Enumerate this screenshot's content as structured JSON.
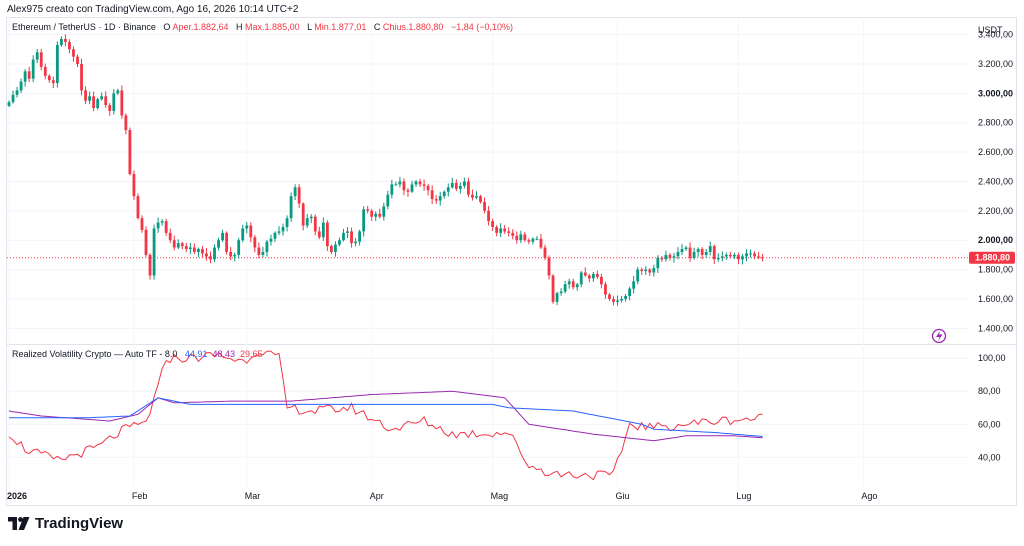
{
  "header": {
    "caption": "Alex975 creato con TradingView.com, Ago 16, 2026 10:14 UTC+2",
    "symbol": "Ethereum / TetherUS · 1D · Binance",
    "open_label": "O",
    "open_value": "Aper.1.882,64",
    "high_label": "H",
    "high_value": "Max.1.885,00",
    "low_label": "L",
    "low_value": "Min.1.877,01",
    "close_label": "C",
    "close_value": "Chius.1.880,80",
    "change_value": "−1,84 (−0,10%)"
  },
  "price_axis": {
    "currency": "USDT",
    "ticks": [
      {
        "label": "3.400,00",
        "value": 3400,
        "bold": false
      },
      {
        "label": "3.200,00",
        "value": 3200,
        "bold": false
      },
      {
        "label": "3.000,00",
        "value": 3000,
        "bold": true
      },
      {
        "label": "2.800,00",
        "value": 2800,
        "bold": false
      },
      {
        "label": "2.600,00",
        "value": 2600,
        "bold": false
      },
      {
        "label": "2.400,00",
        "value": 2400,
        "bold": false
      },
      {
        "label": "2.200,00",
        "value": 2200,
        "bold": false
      },
      {
        "label": "2.000,00",
        "value": 2000,
        "bold": true
      },
      {
        "label": "1.800,00",
        "value": 1800,
        "bold": false
      },
      {
        "label": "1.600,00",
        "value": 1600,
        "bold": false
      },
      {
        "label": "1.400,00",
        "value": 1400,
        "bold": false
      }
    ],
    "last_price_label": "1.880,80",
    "last_price": 1880.8
  },
  "oscillator": {
    "title": "Realized Volatility Crypto — Auto TF - 8.0",
    "values": [
      "44,91",
      "48,43",
      "29,65"
    ],
    "value_colors": [
      "#2962ff",
      "#9c27b0",
      "#f23645"
    ],
    "ticks": [
      {
        "label": "100,00",
        "value": 100
      },
      {
        "label": "80,00",
        "value": 80
      },
      {
        "label": "60,00",
        "value": 60
      },
      {
        "label": "40,00",
        "value": 40
      }
    ]
  },
  "time_axis": [
    {
      "label": "2026",
      "bold": true,
      "idx": 0
    },
    {
      "label": "Feb",
      "bold": false,
      "idx": 31
    },
    {
      "label": "Mar",
      "bold": false,
      "idx": 59
    },
    {
      "label": "Apr",
      "bold": false,
      "idx": 90
    },
    {
      "label": "Mag",
      "bold": false,
      "idx": 120
    },
    {
      "label": "Giu",
      "bold": false,
      "idx": 151
    },
    {
      "label": "Lug",
      "bold": false,
      "idx": 181
    },
    {
      "label": "Ago",
      "bold": false,
      "idx": 212
    }
  ],
  "colors": {
    "up": "#089981",
    "down": "#f23645",
    "blue": "#2962ff",
    "purple": "#9c27b0",
    "red": "#f23645"
  },
  "brand": {
    "name": "TradingView"
  },
  "chart_data": [
    {
      "type": "candlestick",
      "title": "Ethereum / TetherUS · 1D · Binance",
      "ylabel": "USDT",
      "ylim": [
        1300,
        3520
      ],
      "x": "daily, Jan 1 2026 to Aug 16 2026",
      "close_series": [
        2940,
        2990,
        3020,
        3080,
        3150,
        3100,
        3230,
        3280,
        3180,
        3120,
        3090,
        3070,
        3330,
        3370,
        3350,
        3300,
        3250,
        3200,
        3020,
        2950,
        2980,
        2900,
        2960,
        2980,
        2920,
        2880,
        3000,
        3020,
        2850,
        2750,
        2450,
        2300,
        2150,
        2070,
        1900,
        1760,
        2080,
        2120,
        2130,
        2050,
        2000,
        1950,
        1980,
        1960,
        1940,
        1950,
        1920,
        1940,
        1910,
        1890,
        1870,
        1950,
        2000,
        2050,
        1920,
        1890,
        1900,
        2000,
        2080,
        2100,
        2020,
        1950,
        1900,
        1920,
        1990,
        2010,
        2050,
        2060,
        2090,
        2150,
        2300,
        2360,
        2250,
        2100,
        2150,
        2160,
        2060,
        2020,
        2120,
        1960,
        1920,
        1970,
        2000,
        2050,
        2060,
        1980,
        1990,
        2060,
        2210,
        2200,
        2160,
        2180,
        2160,
        2230,
        2310,
        2380,
        2380,
        2400,
        2340,
        2330,
        2380,
        2400,
        2380,
        2370,
        2340,
        2280,
        2270,
        2300,
        2330,
        2360,
        2390,
        2350,
        2370,
        2400,
        2310,
        2290,
        2300,
        2260,
        2200,
        2130,
        2090,
        2050,
        2080,
        2060,
        2050,
        2030,
        2000,
        2040,
        2000,
        1990,
        2010,
        2010,
        1950,
        1880,
        1760,
        1580,
        1640,
        1650,
        1700,
        1720,
        1680,
        1700,
        1780,
        1760,
        1740,
        1770,
        1750,
        1700,
        1630,
        1600,
        1580,
        1590,
        1600,
        1620,
        1670,
        1720,
        1800,
        1790,
        1800,
        1780,
        1810,
        1880,
        1870,
        1900,
        1880,
        1890,
        1920,
        1940,
        1950,
        1880,
        1920,
        1940,
        1900,
        1920,
        1960,
        1870,
        1880,
        1890,
        1900,
        1890,
        1900,
        1870,
        1890,
        1910,
        1910,
        1890,
        1885,
        1880.8
      ]
    },
    {
      "type": "line",
      "title": "Realized Volatility Crypto — Auto TF - 8.0",
      "ylim": [
        22,
        108
      ],
      "series": [
        {
          "name": "",
          "color": "#2962ff",
          "last": 44.91
        },
        {
          "name": "",
          "color": "#9c27b0",
          "last": 48.43
        },
        {
          "name": "",
          "color": "#f23645",
          "last": 29.65
        }
      ]
    }
  ]
}
